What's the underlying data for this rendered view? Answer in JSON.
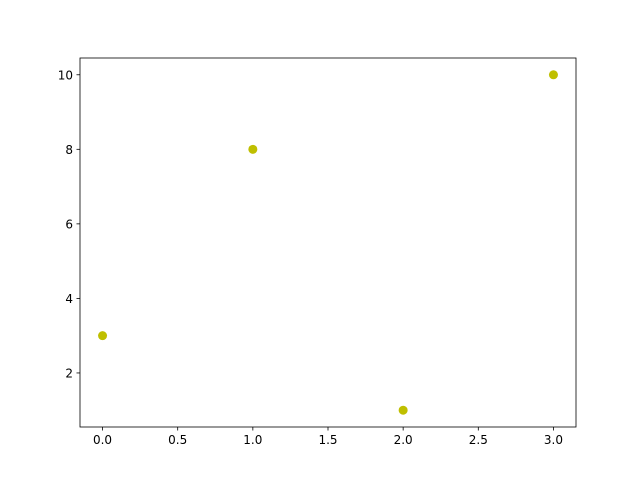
{
  "chart_data": {
    "type": "scatter",
    "title": "",
    "xlabel": "",
    "ylabel": "",
    "x": [
      0,
      1,
      2,
      3
    ],
    "y": [
      3,
      8,
      1,
      10
    ],
    "color": "#bfbf00",
    "xlim": [
      -0.15,
      3.15
    ],
    "ylim": [
      0.55,
      10.45
    ],
    "xticks": [
      0.0,
      0.5,
      1.0,
      1.5,
      2.0,
      2.5,
      3.0
    ],
    "xtick_labels": [
      "0.0",
      "0.5",
      "1.0",
      "1.5",
      "2.0",
      "2.5",
      "3.0"
    ],
    "yticks": [
      2,
      4,
      6,
      8,
      10
    ],
    "ytick_labels": [
      "2",
      "4",
      "6",
      "8",
      "10"
    ],
    "grid": false,
    "legend": "none"
  }
}
